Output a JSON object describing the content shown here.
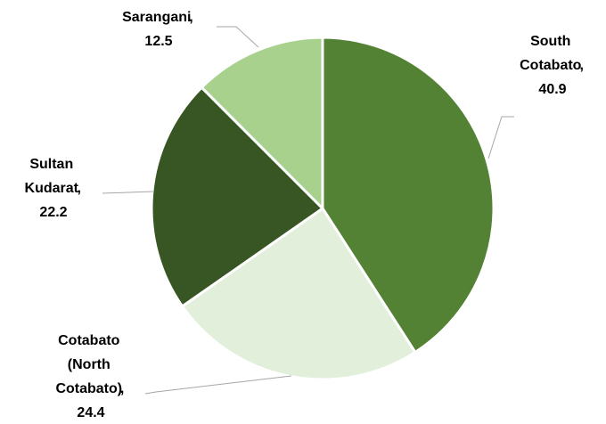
{
  "chart_data": {
    "type": "pie",
    "categories": [
      "South Cotabato",
      "Cotabato (North Cotabato)",
      "Sultan Kudarat",
      "Sarangani"
    ],
    "values": [
      40.9,
      24.4,
      22.2,
      12.5
    ],
    "colors": [
      "#548235",
      "#e2efda",
      "#375623",
      "#a9d18e"
    ]
  }
}
